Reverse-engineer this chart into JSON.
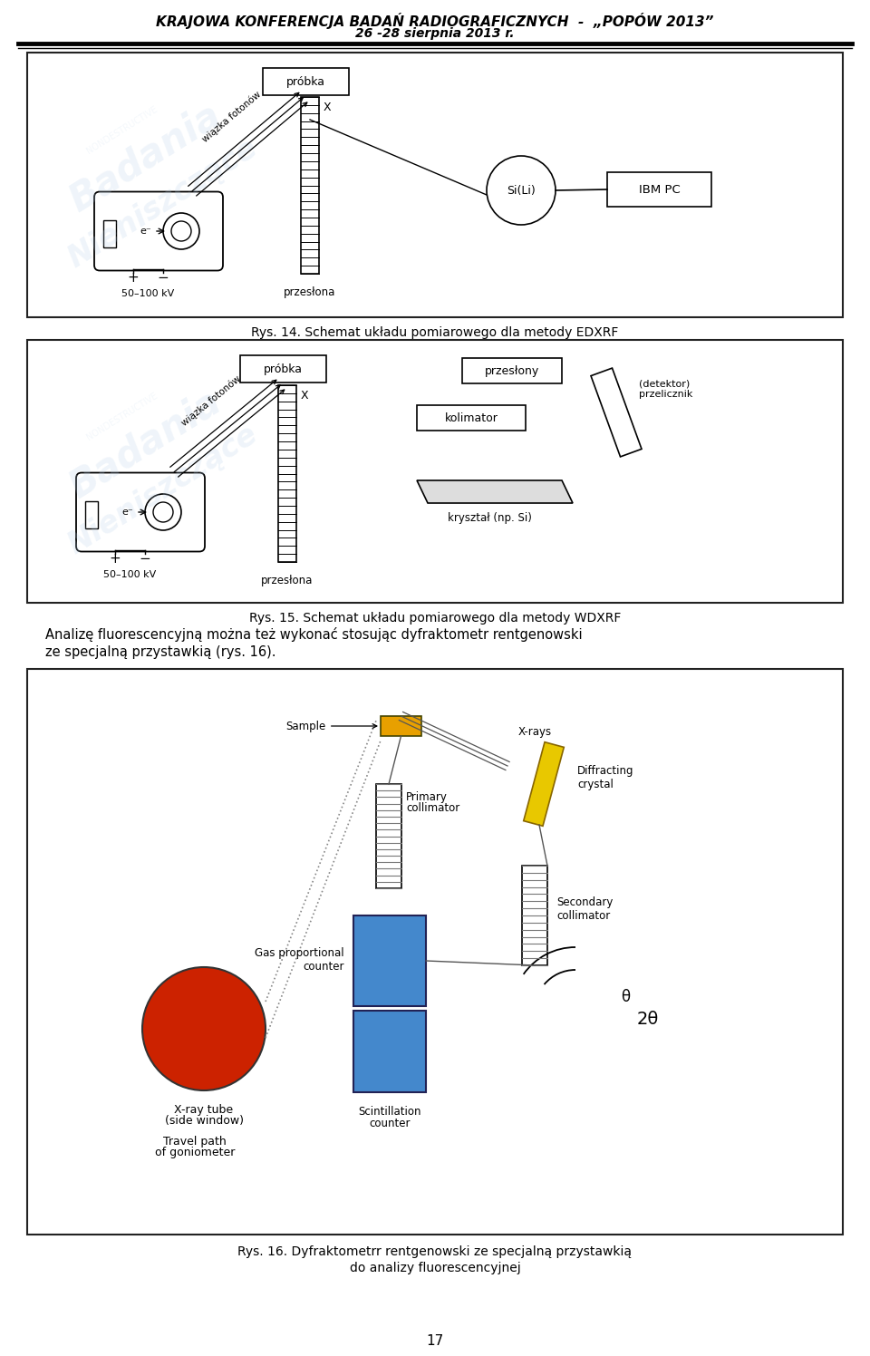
{
  "page_bg": "#ffffff",
  "header_line1": "KRAJOWA KONFERENCJA BADAŃ RADIOGRAFICZNYCH  -  „POPÓW 2013”",
  "header_line2": "26 -28 sierpnia 2013 r.",
  "fig1_caption": "Rys. 14. Schemat układu pomiarowego dla metody EDXRF",
  "fig2_caption": "Rys. 15. Schemat układu pomiarowego dla metody WDXRF",
  "fig3_caption_line1": "Rys. 16. Dyfraktometrr rentgenowski ze specjalną przystawkią",
  "fig3_caption_line2": "do analizy fluorescencyjnej",
  "body_text_line1": "Analizę fluorescencyjną można też wykonać stosując dyfraktometr rentgenowski",
  "body_text_line2": "ze specjalną przystawkią (rys. 16).",
  "page_number": "17",
  "watermark_color": "#b8d0e8",
  "fig_border_color": "#000000"
}
